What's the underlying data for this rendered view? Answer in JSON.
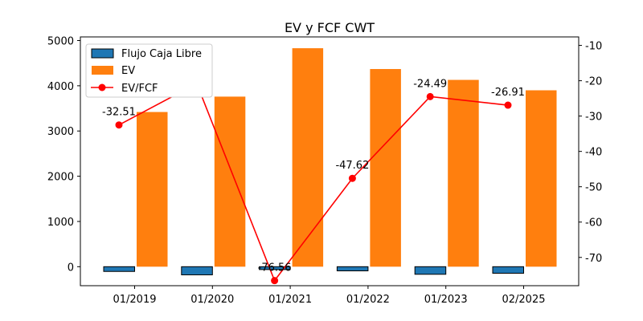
{
  "chart_data": {
    "type": "bar",
    "title": "EV y FCF CWT",
    "categories": [
      "01/2019",
      "01/2020",
      "01/2021",
      "01/2022",
      "01/2023",
      "02/2025"
    ],
    "series": [
      {
        "name": "Flujo Caja Libre",
        "type": "bar",
        "axis": "left",
        "color": "#1f77b4",
        "values": [
          -105,
          -180,
          -63,
          -92,
          -168,
          -145
        ]
      },
      {
        "name": "EV",
        "type": "bar",
        "axis": "left",
        "color": "#ff7f0e",
        "values": [
          3420,
          3760,
          4830,
          4370,
          4130,
          3900
        ]
      },
      {
        "name": "EV/FCF",
        "type": "line",
        "axis": "right",
        "color": "#ff0000",
        "values": [
          -32.51,
          -20.82,
          -76.56,
          -47.62,
          -24.49,
          -26.91
        ]
      }
    ],
    "data_labels": [
      "-32.51",
      "-20.82",
      "-76.56",
      "-47.62",
      "-24.49",
      "-26.91"
    ],
    "left_axis": {
      "ylim": [
        -420,
        5080
      ],
      "ticks": [
        0,
        1000,
        2000,
        3000,
        4000,
        5000
      ]
    },
    "right_axis": {
      "ylim": [
        -78,
        -7.6
      ],
      "ticks": [
        -10,
        -20,
        -30,
        -40,
        -50,
        -60,
        -70
      ]
    },
    "legend": {
      "position": "upper-left"
    },
    "grid": false
  }
}
